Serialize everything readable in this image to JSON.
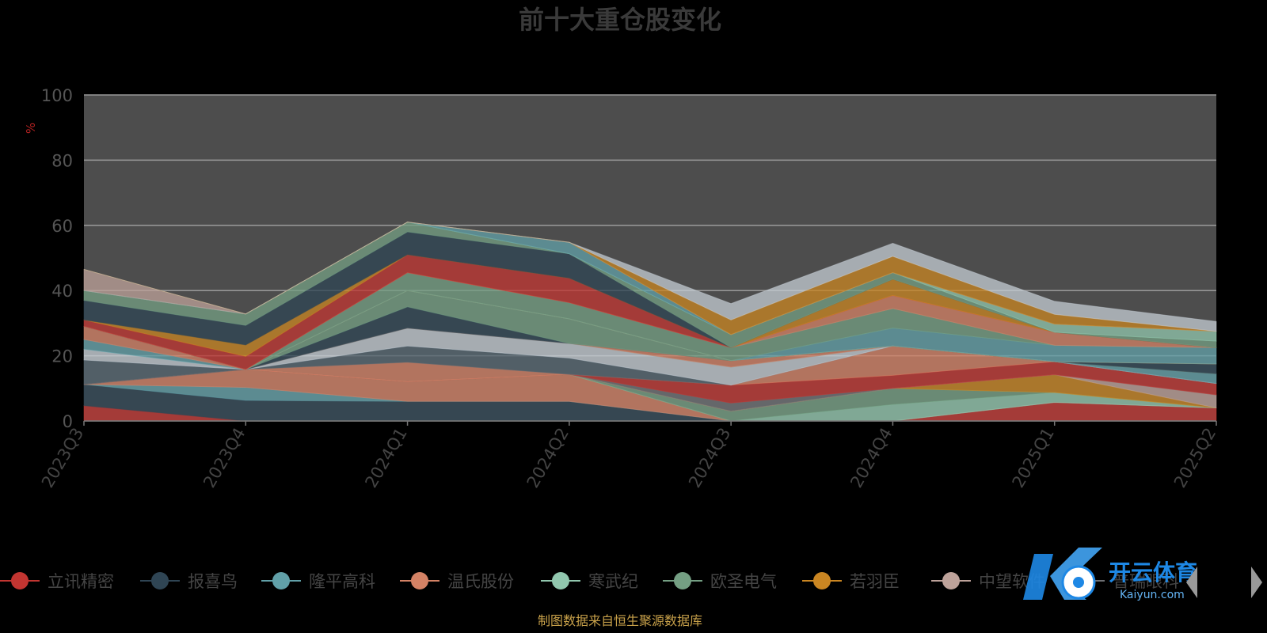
{
  "chart_data": {
    "type": "area",
    "title": "前十大重仓股变化",
    "ylabel": "%",
    "ylim": [
      0,
      100
    ],
    "yticks": [
      0,
      20,
      40,
      60,
      80,
      100
    ],
    "categories": [
      "2023Q3",
      "2023Q4",
      "2024Q1",
      "2024Q2",
      "2024Q3",
      "2024Q4",
      "2025Q1",
      "2025Q2"
    ],
    "grid": true,
    "legend_position": "bottom",
    "series": [
      {
        "name": "立讯精密",
        "color": "#c23531",
        "values": [
          4.7,
          0,
          0,
          0,
          0,
          0,
          5.7,
          4.0
        ]
      },
      {
        "name": "报喜鸟",
        "color": "#2f4554",
        "values": [
          6.5,
          6.3,
          6.0,
          6.0,
          0,
          0,
          0,
          0
        ]
      },
      {
        "name": "隆平高科",
        "color": "#61a0a8",
        "values": [
          0,
          4.0,
          0,
          0,
          0,
          0,
          0,
          0
        ]
      },
      {
        "name": "温氏股份",
        "color": "#d48265",
        "values": [
          0,
          5.5,
          6.0,
          8.3,
          0,
          0,
          0,
          0
        ]
      },
      {
        "name": "寒武纪",
        "color": "#91c7ae",
        "values": [
          0,
          0,
          0,
          0,
          0,
          5.0,
          3.0,
          0
        ]
      },
      {
        "name": "欧圣电气",
        "color": "#749f83",
        "values": [
          0,
          0,
          0,
          0,
          3.0,
          5.0,
          0,
          0
        ]
      },
      {
        "name": "若羽臣",
        "color": "#ca8622",
        "values": [
          0,
          0,
          0,
          0,
          0,
          0,
          5.5,
          0
        ]
      },
      {
        "name": "中望软件",
        "color": "#bda29a",
        "values": [
          0,
          0,
          0,
          0,
          0,
          0,
          0,
          4.0
        ]
      },
      {
        "name": "普瑞眼科",
        "color": "#6e7074",
        "values": [
          0,
          0,
          0,
          0,
          2.5,
          0,
          0,
          0
        ]
      }
    ],
    "extra_layers": [
      {
        "color": "#c23531",
        "values": [
          0,
          0,
          0,
          0,
          5.5,
          4.0,
          4.0,
          3.5
        ]
      },
      {
        "color": "#d48265",
        "values": [
          0,
          0,
          6.0,
          0,
          0,
          9.0,
          0,
          0
        ]
      },
      {
        "color": "#546570",
        "values": [
          7.5,
          0,
          5.0,
          5.0,
          0,
          0,
          0,
          0
        ]
      },
      {
        "color": "#c4ccd3",
        "values": [
          3.3,
          0,
          5.5,
          4.5,
          5.5,
          0,
          0,
          0
        ]
      },
      {
        "color": "#61a0a8",
        "values": [
          3.0,
          0,
          0,
          0,
          0,
          0,
          0,
          3.0
        ]
      },
      {
        "color": "#d48265",
        "values": [
          4.0,
          0,
          0,
          0,
          2.0,
          0,
          0,
          0
        ]
      },
      {
        "color": "#2f4554",
        "values": [
          0,
          0,
          6.5,
          0,
          0,
          0,
          0,
          0
        ]
      },
      {
        "color": "#749f83",
        "values": [
          0,
          0,
          5.0,
          7.5,
          0,
          0,
          0,
          0
        ]
      },
      {
        "color": "#2f4554",
        "values": [
          0,
          0,
          0,
          0,
          0,
          0,
          0,
          3.0
        ]
      },
      {
        "color": "#c4ccd3",
        "values": [
          0,
          0,
          0,
          0,
          0,
          0,
          0,
          0
        ]
      },
      {
        "color": "#ca8622",
        "values": [
          0,
          0,
          0,
          0,
          0,
          0,
          0,
          0
        ]
      },
      {
        "color": "#61a0a8",
        "values": [
          0,
          0,
          0,
          0,
          0,
          5.5,
          5.0,
          5.0
        ]
      },
      {
        "color": "#749f83",
        "values": [
          0,
          0,
          5.5,
          5.0,
          4.0,
          6.0,
          0,
          0
        ]
      },
      {
        "color": "#d48265",
        "values": [
          0,
          0,
          0,
          0,
          0,
          4.0,
          4.0,
          0
        ]
      },
      {
        "color": "#c23531",
        "values": [
          2.0,
          4.0,
          5.5,
          7.5,
          0,
          0,
          0,
          0
        ]
      },
      {
        "color": "#ca8622",
        "values": [
          0,
          3.5,
          0,
          0,
          0,
          5.0,
          0,
          0
        ]
      },
      {
        "color": "#2f4554",
        "values": [
          6.0,
          6.0,
          7.0,
          7.5,
          0,
          0,
          0,
          0
        ]
      },
      {
        "color": "#749f83",
        "values": [
          3.0,
          3.5,
          3.0,
          0,
          4.0,
          2.0,
          0,
          2.0
        ]
      },
      {
        "color": "#91c7ae",
        "values": [
          0,
          0,
          0,
          0,
          0,
          0,
          2.5,
          3.0
        ]
      },
      {
        "color": "#61a0a8",
        "values": [
          0,
          0,
          0,
          3.5,
          0,
          0,
          0,
          0
        ]
      },
      {
        "color": "#bda29a",
        "values": [
          6.5,
          0,
          0,
          0,
          0,
          0,
          0,
          0
        ]
      },
      {
        "color": "#ca8622",
        "values": [
          0,
          0,
          0,
          0,
          4.5,
          5.0,
          3.0,
          0
        ]
      },
      {
        "color": "#c4ccd3",
        "values": [
          0,
          0,
          0,
          0,
          5.0,
          4.0,
          4.0,
          3.0
        ]
      }
    ]
  },
  "source_note": "制图数据来自恒生聚源数据库",
  "watermark": {
    "brand": "开云体育",
    "sub": "Kaiyun.com"
  },
  "colors": {
    "background": "#000000",
    "plot_area": "#4d4d4d",
    "gridline": "#9a9a9a"
  }
}
